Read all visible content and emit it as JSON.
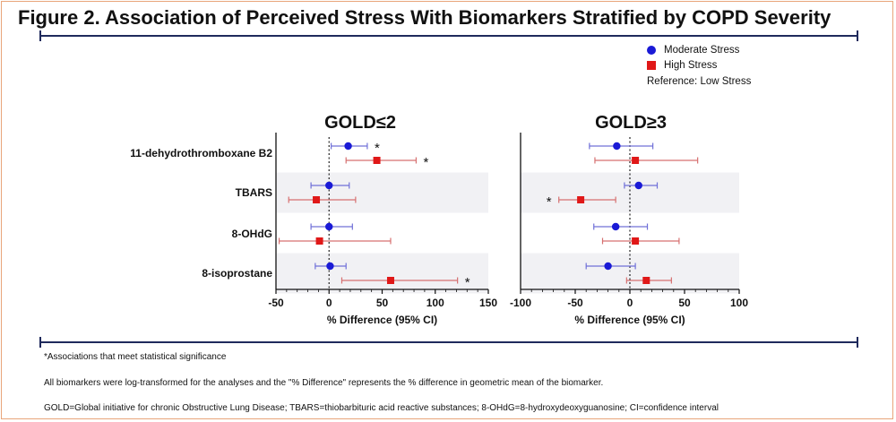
{
  "title": "Figure 2. Association of Perceived Stress With Biomarkers Stratified by COPD Severity",
  "legend": {
    "moderate_label": "Moderate Stress",
    "high_label": "High Stress",
    "reference": "Reference: Low Stress"
  },
  "colors": {
    "moderate": "#1a1ad6",
    "moderate_ci": "#7070d8",
    "high": "#e01818",
    "high_ci": "#d67070",
    "band": "#f1f1f4",
    "rule": "#1f2a5c"
  },
  "footnotes": {
    "significance": "*Associations that meet statistical significance",
    "transform": "All biomarkers were log-transformed for the analyses and the \"% Difference\" represents the % difference in geometric mean of the biomarker.",
    "abbreviations": "GOLD=Global initiative for chronic Obstructive Lung Disease; TBARS=thiobarbituric acid reactive substances; 8-OHdG=8-hydroxydeoxyguanosine; CI=confidence interval"
  },
  "chart_data": [
    {
      "type": "scatter",
      "title": "GOLD≤2",
      "xlabel": "% Difference (95% CI)",
      "xlim": [
        -50,
        150
      ],
      "xticks": [
        -50,
        0,
        50,
        100,
        150
      ],
      "categories": [
        "11-dehydrothromboxane B2",
        "TBARS",
        "8-OHdG",
        "8-isoprostane"
      ],
      "series": [
        {
          "name": "Moderate Stress",
          "values": [
            18,
            0,
            0,
            1
          ],
          "ci_low": [
            2,
            -17,
            -17,
            -13
          ],
          "ci_high": [
            36,
            19,
            22,
            16
          ],
          "significant": [
            true,
            false,
            false,
            false
          ]
        },
        {
          "name": "High Stress",
          "values": [
            45,
            -12,
            -9,
            58
          ],
          "ci_low": [
            16,
            -38,
            -47,
            12
          ],
          "ci_high": [
            82,
            25,
            58,
            121
          ],
          "significant": [
            true,
            false,
            false,
            true
          ]
        }
      ]
    },
    {
      "type": "scatter",
      "title": "GOLD≥3",
      "xlabel": "% Difference (95% CI)",
      "xlim": [
        -100,
        100
      ],
      "xticks": [
        -100,
        -50,
        0,
        50,
        100
      ],
      "categories": [
        "11-dehydrothromboxane B2",
        "TBARS",
        "8-OHdG",
        "8-isoprostane"
      ],
      "series": [
        {
          "name": "Moderate Stress",
          "values": [
            -12,
            8,
            -13,
            -20
          ],
          "ci_low": [
            -37,
            -5,
            -33,
            -40
          ],
          "ci_high": [
            21,
            25,
            16,
            5
          ],
          "significant": [
            false,
            false,
            false,
            false
          ]
        },
        {
          "name": "High Stress",
          "values": [
            5,
            -45,
            5,
            15
          ],
          "ci_low": [
            -32,
            -65,
            -25,
            -3
          ],
          "ci_high": [
            62,
            -13,
            45,
            38
          ],
          "significant": [
            false,
            true,
            false,
            false
          ]
        }
      ]
    }
  ]
}
